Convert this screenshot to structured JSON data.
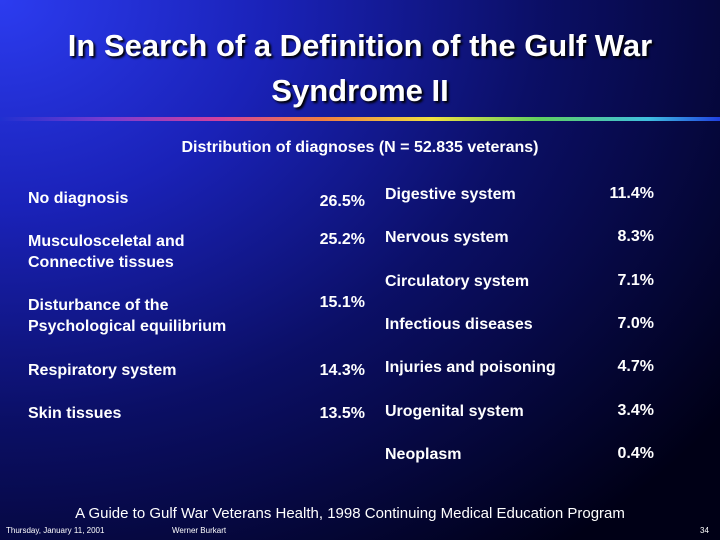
{
  "header": {
    "title": [
      "In Search of a Definition of the Gulf War",
      "Syndrome II"
    ],
    "subtitle": "Distribution of diagnoses  (N = 52.835 veterans)"
  },
  "left": [
    {
      "label": [
        "No diagnosis"
      ],
      "value": "26.5%"
    },
    {
      "label": [
        "Musculosceletal and",
        "Connective tissues"
      ],
      "value": "25.2%"
    },
    {
      "label": [
        "Disturbance of the",
        "Psychological equilibrium"
      ],
      "value": "15.1%"
    },
    {
      "label": [
        "Respiratory system"
      ],
      "value": "14.3%"
    },
    {
      "label": [
        "Skin tissues"
      ],
      "value": "13.5%"
    }
  ],
  "right": [
    {
      "label": "Digestive system",
      "value": "11.4%"
    },
    {
      "label": "Nervous system",
      "value": "8.3%"
    },
    {
      "label": "Circulatory system",
      "value": "7.1%"
    },
    {
      "label": "Infectious diseases",
      "value": "7.0%"
    },
    {
      "label": "Injuries and poisoning",
      "value": "4.7%"
    },
    {
      "label": "Urogenital system",
      "value": "3.4%"
    },
    {
      "label": "Neoplasm",
      "value": "0.4%"
    }
  ],
  "source": "A Guide to Gulf War Veterans Health, 1998 Continuing Medical Education Program",
  "footer": {
    "date": "Thursday, January 11, 2001",
    "author": "Werner Burkart",
    "page": "34"
  }
}
